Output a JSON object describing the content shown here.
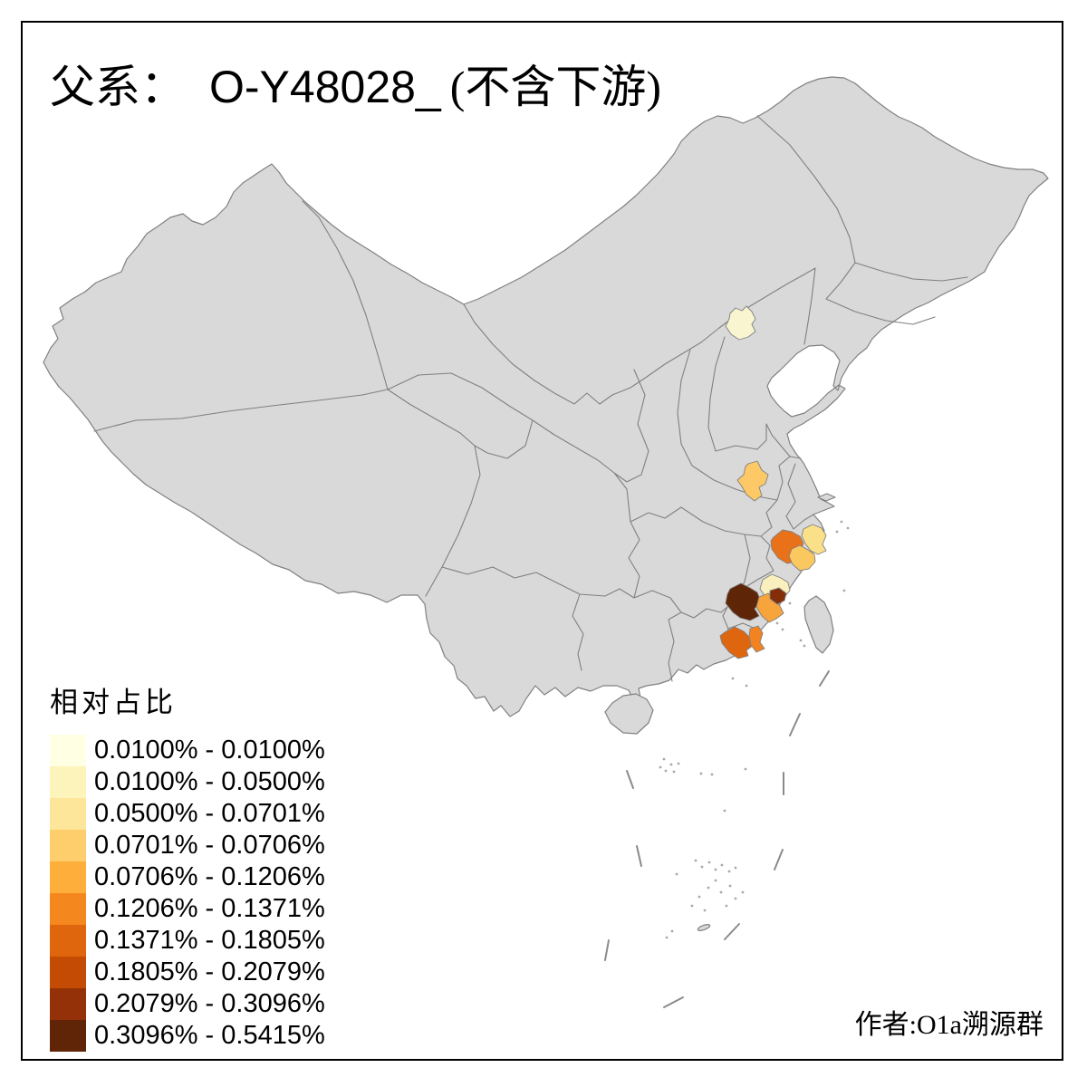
{
  "title": {
    "prefix": "父系：",
    "lineage": "O-Y48028_",
    "suffix": "(不含下游)"
  },
  "legend": {
    "title": "相对占比",
    "items": [
      {
        "range": "0.0100% - 0.0100%",
        "color": "#FFFFE3"
      },
      {
        "range": "0.0100% - 0.0500%",
        "color": "#FCF4BB"
      },
      {
        "range": "0.0500% - 0.0701%",
        "color": "#FDE59A"
      },
      {
        "range": "0.0701% - 0.0706%",
        "color": "#FDCE6B"
      },
      {
        "range": "0.0706% - 0.1206%",
        "color": "#FDAE3B"
      },
      {
        "range": "0.1206% - 0.1371%",
        "color": "#F5871F"
      },
      {
        "range": "0.1371% - 0.1805%",
        "color": "#DF660D"
      },
      {
        "range": "0.1805% - 0.2079%",
        "color": "#C44B04"
      },
      {
        "range": "0.2079% - 0.3096%",
        "color": "#943108"
      },
      {
        "range": "0.3096% - 0.5415%",
        "color": "#5F2506"
      }
    ]
  },
  "attribution": "作者:O1a溯源群",
  "map": {
    "land_color": "#D9D9D9",
    "border_color": "#808080",
    "sea_color": "#FFFFFF",
    "regions": [
      {
        "id": "beijing-area",
        "color": "#F8F5D0",
        "range": "0.0100% - 0.0100%"
      },
      {
        "id": "central-china",
        "color": "#FCC966",
        "range": "0.0701% - 0.0706%"
      },
      {
        "id": "e-zhejiang-coast",
        "color": "#FAE088",
        "range": "0.0500% - 0.0701%"
      },
      {
        "id": "sw-zhejiang",
        "color": "#E8711A",
        "range": "0.1371% - 0.1805%"
      },
      {
        "id": "se-zhejiang-coast",
        "color": "#FBC75F",
        "range": "0.0701% - 0.0706%"
      },
      {
        "id": "ne-fujian-coast",
        "color": "#FAF0BE",
        "range": "0.0100% - 0.0500%"
      },
      {
        "id": "central-fujian",
        "color": "#5E2507",
        "range": "0.3096% - 0.5415%"
      },
      {
        "id": "s-fujian-coast",
        "color": "#F8A43C",
        "range": "0.0706% - 0.1206%"
      },
      {
        "id": "fujian-coast-small",
        "color": "#832E08",
        "range": "0.2079% - 0.3096%"
      },
      {
        "id": "e-guangdong",
        "color": "#DD660F",
        "range": "0.1371% - 0.1805%"
      },
      {
        "id": "e-guangdong-coast",
        "color": "#F28320",
        "range": "0.1206% - 0.1371%"
      }
    ]
  }
}
